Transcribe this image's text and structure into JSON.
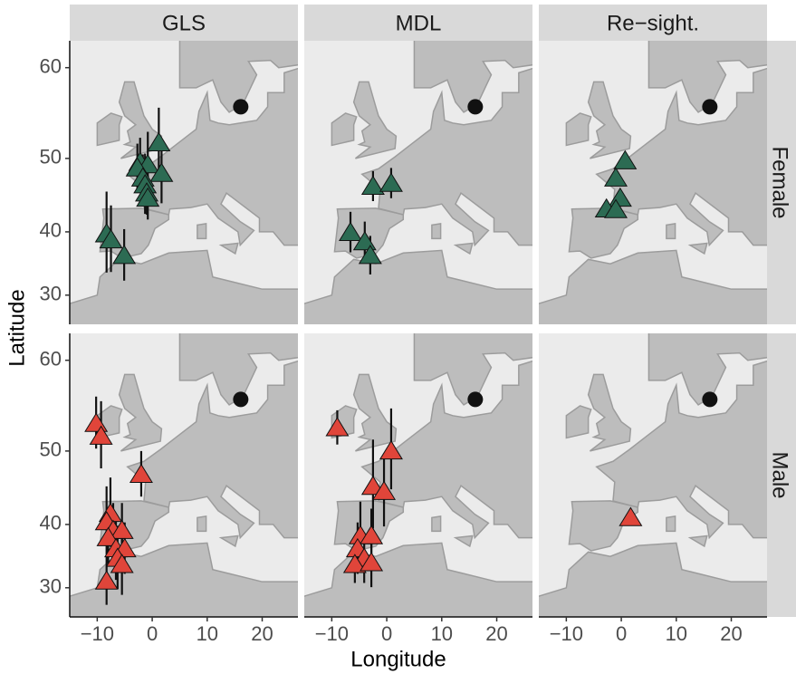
{
  "chart_data": {
    "type": "scatter",
    "x_label": "Longitude",
    "y_label": "Latitude",
    "columns": [
      "GLS",
      "MDL",
      "Re−sight."
    ],
    "rows": [
      "Female",
      "Male"
    ],
    "y_scale": "mercator",
    "xlim": [
      -15,
      26.5
    ],
    "xticks": [
      {
        "value": -10,
        "label": "−10"
      },
      0,
      10,
      20
    ],
    "ylim": [
      25,
      62.5
    ],
    "yticks": [
      30,
      40,
      50,
      60
    ],
    "colony": {
      "x": 16.1,
      "y": 56,
      "color": "#111111"
    },
    "panels": [
      {
        "color": "#2c6b53",
        "x": [
          1.2,
          -2.2,
          -0.8,
          1.7,
          -2.7,
          -1.7,
          -1.3,
          -1.0,
          -0.8,
          -8.3,
          -7.5,
          -5.1
        ],
        "y": [
          51.9,
          49.5,
          49.2,
          48.1,
          48.8,
          47.5,
          46.6,
          45.5,
          44.8,
          39.7,
          38.8,
          36.4
        ],
        "yerr": [
          4,
          3,
          4,
          4,
          3,
          3,
          4,
          3,
          3,
          6,
          5,
          4
        ]
      },
      {
        "color": "#2c6b53",
        "x": [
          -2.5,
          0.8,
          -6.6,
          -4.0,
          -3.0
        ],
        "y": [
          46.4,
          46.8,
          39.9,
          38.5,
          36.4
        ],
        "yerr": [
          2,
          2,
          3,
          3,
          3
        ]
      },
      {
        "color": "#2c6b53",
        "x": [
          0.7,
          -1.0,
          -0.2,
          -2.7,
          -1.0
        ],
        "y": [
          49.7,
          47.5,
          44.8,
          43.3,
          43.2
        ]
      },
      {
        "color": "#e0453a",
        "x": [
          -10.2,
          -9.3,
          -2.0,
          -7.6,
          -8.3,
          -7.1,
          -5.5,
          -8.0,
          -6.6,
          -5.0,
          -6.3,
          -5.5,
          -8.3
        ],
        "y": [
          53.3,
          51.8,
          47.0,
          41.6,
          40.4,
          39.1,
          39.1,
          38.0,
          36.3,
          36.3,
          34.8,
          33.8,
          31.1
        ],
        "yerr": [
          3,
          4,
          3,
          5,
          5,
          4,
          4,
          4,
          5,
          4,
          5,
          5,
          4
        ]
      },
      {
        "color": "#e0453a",
        "x": [
          -9.0,
          0.8,
          -2.5,
          -0.5,
          -4.8,
          -2.8,
          -5.3,
          -4.1,
          -5.8,
          -2.8
        ],
        "y": [
          52.8,
          50.0,
          45.4,
          44.7,
          38.3,
          38.3,
          36.3,
          34.8,
          33.8,
          34.1
        ],
        "yerr": [
          2,
          5,
          6,
          5,
          5,
          4,
          4,
          4,
          3,
          4
        ]
      },
      {
        "color": "#e0453a",
        "x": [
          1.7
        ],
        "y": [
          41.0
        ]
      }
    ]
  }
}
